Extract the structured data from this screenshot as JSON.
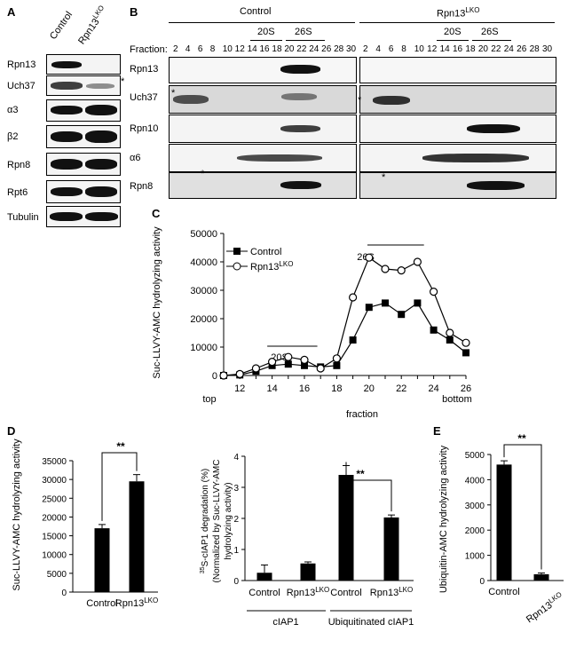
{
  "panels": {
    "A": "A",
    "B": "B",
    "C": "C",
    "D": "D",
    "E": "E"
  },
  "panelA": {
    "columns": [
      "Control",
      "Rpn13"
    ],
    "col_sup": "LKO",
    "rows": [
      "Rpn13",
      "Uch37",
      "α3",
      "β2",
      "Rpn8",
      "Rpt6",
      "Tubulin"
    ],
    "star": "*"
  },
  "panelB": {
    "group_left": "Control",
    "group_right": "Rpn13",
    "group_right_sup": "LKO",
    "sub_20s": "20S",
    "sub_26s": "26S",
    "fraction_label": "Fraction:",
    "fractions": [
      "2",
      "4",
      "6",
      "8",
      "10",
      "12",
      "14",
      "16",
      "18",
      "20",
      "22",
      "24",
      "26",
      "28",
      "30"
    ],
    "rows": [
      "Rpn13",
      "Uch37",
      "Rpn10",
      "α6",
      "Rpn8"
    ],
    "star": "*"
  },
  "panelC": {
    "chart_data": {
      "type": "line",
      "ylabel": "Suc-LLVY-AMC hydrolyzing activity",
      "xlabel": "fraction",
      "ylim": [
        0,
        50000
      ],
      "yticks": [
        "0",
        "10000",
        "20000",
        "30000",
        "40000",
        "50000"
      ],
      "xticks": [
        "12",
        "14",
        "16",
        "18",
        "20",
        "22",
        "24",
        "26"
      ],
      "x_end_labels": {
        "top": "top",
        "bottom": "bottom"
      },
      "annotations": [
        "20S",
        "26S"
      ],
      "x": [
        11,
        12,
        13,
        14,
        15,
        16,
        17,
        18,
        19,
        20,
        21,
        22,
        23,
        24,
        25,
        26
      ],
      "series": [
        {
          "name": "Control",
          "sup": "",
          "values": [
            0,
            200,
            1500,
            3500,
            4000,
            3500,
            3000,
            3500,
            12500,
            24000,
            25500,
            21500,
            25500,
            16000,
            12500,
            8000
          ]
        },
        {
          "name": "Rpn13",
          "sup": "LKO",
          "values": [
            0,
            500,
            2500,
            4800,
            6500,
            5500,
            2500,
            6000,
            27500,
            41500,
            37500,
            37000,
            40000,
            29500,
            15000,
            11500
          ]
        }
      ]
    }
  },
  "panelD1": {
    "chart_data": {
      "type": "bar",
      "ylabel": "Suc-LLVY-AMC hydrolyzing activity",
      "ylim": [
        0,
        35000
      ],
      "yticks": [
        "0",
        "5000",
        "10000",
        "15000",
        "20000",
        "25000",
        "30000",
        "35000"
      ],
      "categories": [
        "Control",
        "Rpn13"
      ],
      "category_sup": [
        "",
        "LKO"
      ],
      "values": [
        17000,
        29500
      ],
      "errors": [
        1000,
        1800
      ],
      "significance": "**"
    }
  },
  "panelD2": {
    "chart_data": {
      "type": "bar",
      "ylabel_line1": "35S-cIAP1 degradation (%)",
      "ylabel_sup": "35",
      "ylabel_main": "S-cIAP1 degradation (%)",
      "ylabel_line2": "(Normalized by Suc-LLVY-AMC",
      "ylabel_line3": "hydrolyzing activity)",
      "ylim": [
        0,
        4
      ],
      "yticks": [
        "0",
        "1",
        "2",
        "3",
        "4"
      ],
      "categories": [
        "Control",
        "Rpn13",
        "Control",
        "Rpn13"
      ],
      "category_sup": [
        "",
        "LKO",
        "",
        "LKO"
      ],
      "values": [
        0.25,
        0.55,
        3.4,
        2.03
      ],
      "errors": [
        0.25,
        0.05,
        0.3,
        0.08
      ],
      "groups": [
        "cIAP1",
        "Ubiquitinated cIAP1"
      ],
      "significance": "**"
    }
  },
  "panelE": {
    "chart_data": {
      "type": "bar",
      "ylabel": "Ubiquitin-AMC hydrolyzing activity",
      "ylim": [
        0,
        5000
      ],
      "yticks": [
        "0",
        "1000",
        "2000",
        "3000",
        "4000",
        "5000"
      ],
      "categories": [
        "Control",
        "Rpn13"
      ],
      "category_sup": [
        "",
        "LKO"
      ],
      "values": [
        4600,
        250
      ],
      "errors": [
        150,
        50
      ],
      "significance": "**"
    }
  }
}
